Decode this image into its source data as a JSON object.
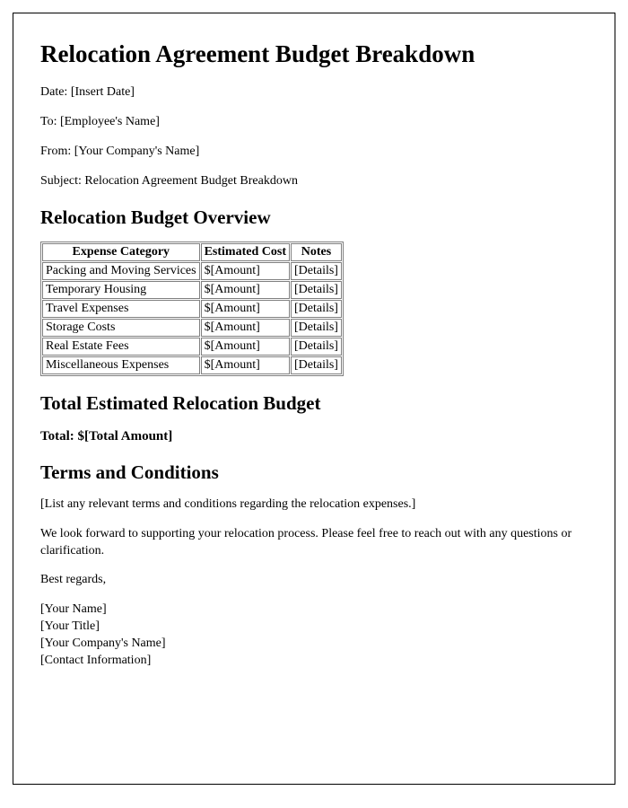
{
  "title": "Relocation Agreement Budget Breakdown",
  "meta": {
    "date_label": "Date:",
    "date_value": "[Insert Date]",
    "to_label": "To:",
    "to_value": "[Employee's Name]",
    "from_label": "From:",
    "from_value": "[Your Company's Name]",
    "subject_label": "Subject:",
    "subject_value": "Relocation Agreement Budget Breakdown"
  },
  "overview_heading": "Relocation Budget Overview",
  "table": {
    "columns": [
      "Expense Category",
      "Estimated Cost",
      "Notes"
    ],
    "rows": [
      [
        "Packing and Moving Services",
        "$[Amount]",
        "[Details]"
      ],
      [
        "Temporary Housing",
        "$[Amount]",
        "[Details]"
      ],
      [
        "Travel Expenses",
        "$[Amount]",
        "[Details]"
      ],
      [
        "Storage Costs",
        "$[Amount]",
        "[Details]"
      ],
      [
        "Real Estate Fees",
        "$[Amount]",
        "[Details]"
      ],
      [
        "Miscellaneous Expenses",
        "$[Amount]",
        "[Details]"
      ]
    ]
  },
  "total_heading": "Total Estimated Relocation Budget",
  "total_label": "Total:",
  "total_value": "$[Total Amount]",
  "terms_heading": "Terms and Conditions",
  "terms_body": "[List any relevant terms and conditions regarding the relocation expenses.]",
  "closing_paragraph": "We look forward to supporting your relocation process. Please feel free to reach out with any questions or clarification.",
  "regards": "Best regards,",
  "signature": {
    "name": "[Your Name]",
    "title": "[Your Title]",
    "company": "[Your Company's Name]",
    "contact": "[Contact Information]"
  }
}
